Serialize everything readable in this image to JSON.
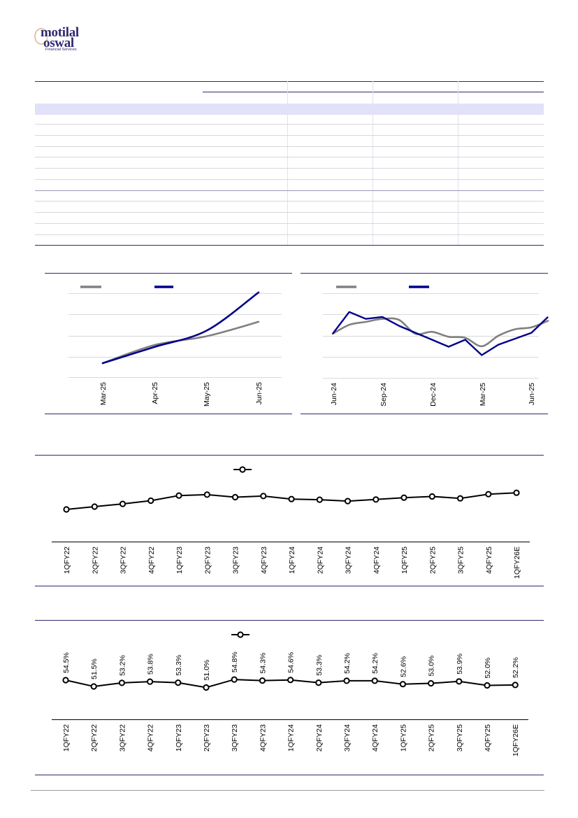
{
  "brand": {
    "logo_line1": "motilal",
    "logo_line2": "oswal",
    "logo_sub": "Financial Services",
    "color": "#2e2a70"
  },
  "colors": {
    "navy": "#00008b",
    "grey": "#808080",
    "rule": "#2e2a70",
    "band": "#e1e1f9"
  },
  "chart_data": [
    {
      "type": "line",
      "x_ticks": [
        "Mar-25",
        "Apr-25",
        "May-25",
        "Jun-25"
      ],
      "series": [
        {
          "color": "#808080",
          "values": [
            0.0,
            1.45,
            2.15,
            3.3
          ]
        },
        {
          "color": "#00008b",
          "values": [
            0.0,
            1.3,
            2.6,
            5.65
          ]
        }
      ],
      "grid": true
    },
    {
      "type": "line",
      "x_ticks": [
        "Jun-24",
        "Sep-24",
        "Dec-24",
        "Mar-25",
        "Jun-25"
      ],
      "series": [
        {
          "color": "#808080",
          "values": [
            0,
            0.9,
            1.2,
            1.5,
            1.4,
            0,
            0.2,
            -0.3,
            -0.4,
            -1.25,
            -0.2,
            0.45,
            0.65,
            1.3
          ]
        },
        {
          "color": "#00008b",
          "values": [
            0,
            2.2,
            1.5,
            1.7,
            0.8,
            0.1,
            -0.6,
            -1.3,
            -0.6,
            -2.15,
            -1.1,
            -0.5,
            0.1,
            1.7
          ]
        }
      ],
      "grid": true
    },
    {
      "type": "line",
      "categories": [
        "1QFY22",
        "2QFY22",
        "3QFY22",
        "4QFY22",
        "1QFY23",
        "2QFY23",
        "3QFY23",
        "4QFY23",
        "1QFY24",
        "2QFY24",
        "3QFY24",
        "4QFY24",
        "1QFY25",
        "2QFY25",
        "3QFY25",
        "4QFY25",
        "1QFY26E"
      ],
      "series": [
        {
          "color": "#000000",
          "values": [
            0,
            1.2,
            2.4,
            3.8,
            6.0,
            6.4,
            5.3,
            5.8,
            4.5,
            4.2,
            3.6,
            4.3,
            5.1,
            5.6,
            4.8,
            6.6,
            7.2
          ]
        }
      ],
      "grid": false
    },
    {
      "type": "line",
      "categories": [
        "1QFY22",
        "2QFY22",
        "3QFY22",
        "4QFY22",
        "1QFY23",
        "2QFY23",
        "3QFY23",
        "4QFY23",
        "1QFY24",
        "2QFY24",
        "3QFY24",
        "4QFY24",
        "1QFY25",
        "2QFY25",
        "3QFY25",
        "4QFY25",
        "1QFY26E"
      ],
      "data_labels": [
        "54.5%",
        "51.5%",
        "53.2%",
        "53.8%",
        "53.3%",
        "51.0%",
        "54.8%",
        "54.3%",
        "54.6%",
        "53.3%",
        "54.2%",
        "54.2%",
        "52.6%",
        "53.0%",
        "53.9%",
        "52.0%",
        "52.2%"
      ],
      "series": [
        {
          "color": "#000000",
          "values": [
            54.5,
            51.5,
            53.2,
            53.8,
            53.3,
            51.0,
            54.8,
            54.3,
            54.6,
            53.3,
            54.2,
            54.2,
            52.6,
            53.0,
            53.9,
            52.0,
            52.2
          ]
        }
      ],
      "grid": false
    }
  ]
}
